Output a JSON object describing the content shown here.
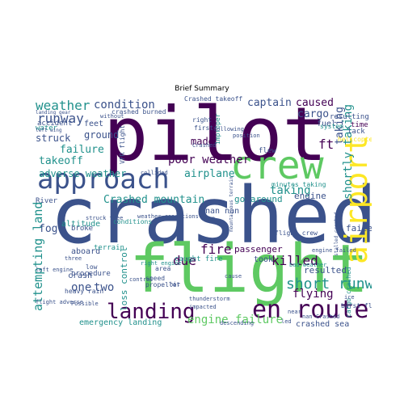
{
  "title": "Brief Summary",
  "palette": {
    "dark_purple": "#440154",
    "indigo": "#3b528b",
    "teal": "#21918c",
    "green": "#5ec962",
    "yellow": "#fde725"
  },
  "words": {
    "w01": "crashed",
    "w02": "pilot",
    "w03": "flight",
    "w04": "approach",
    "w05": "crew",
    "w06": "airport",
    "w07": "en route",
    "w08": "landing",
    "w09": "weather",
    "w10": "condition",
    "w11": "runway",
    "w12": "ground",
    "w13": "takeoff",
    "w14": "poor weather",
    "w15": "adverse weather",
    "w16": "attempting land",
    "w17": "Crashed mountain",
    "w18": "engine failure",
    "w19": "killed",
    "w20": "short runway",
    "w21": "captain",
    "w22": "cargo",
    "w23": "caused",
    "w24": "shortly taking",
    "w25": "taking",
    "w26": "failure",
    "w27": "fog",
    "w28": "struck",
    "w29": "fire",
    "w30": "due",
    "w31": "airplane",
    "w32": "two",
    "w33": "one",
    "w34": "emergency landing",
    "w35": "loss control",
    "w36": "engine",
    "w37": "go around",
    "w38": "passenger",
    "w39": "flying",
    "w40": "resulted",
    "w41": "crashed sea",
    "w42": "made",
    "w43": "nan nan",
    "w44": "taking",
    "w45": "failed",
    "w46": "minutes taking",
    "w47": "caught fire",
    "w48": "took",
    "w49": "crash",
    "w50": "aboard",
    "w51": "accident",
    "w52": "feet",
    "w53": "water",
    "w54": "altitude",
    "w55": "broke",
    "w56": "VFR flight",
    "w57": "terrain",
    "w58": "procedure",
    "w59": "heavy rain",
    "w60": "cargo crashed",
    "w61": "right engine",
    "w62": "crashed burned",
    "w63": "Crashed takeoff",
    "w64": "fuel",
    "w65": "resulting",
    "w66": "lack",
    "w67": "flew",
    "w68": "system",
    "w69": "time",
    "w70": "flight crew",
    "w71": "improper",
    "w72": "left engine",
    "w73": "speed",
    "w74": "propeller",
    "w75": "led",
    "w76": "near",
    "w77": "Crashed",
    "w78": "bad weather",
    "w79": "mountainous terrain",
    "w80": "River",
    "w81": "ft",
    "w82": "right",
    "w83": "first",
    "w84": "position",
    "w85": "descending",
    "w86": "weather conditions",
    "w87": "without",
    "w88": "collided",
    "w89": "hit",
    "w90": "cause",
    "w91": "nan",
    "w92": "Possible",
    "w93": "area",
    "w94": "engine failed",
    "w95": "impacted",
    "w96": "thunderstorm",
    "w97": "control",
    "w98": "nan Crashed",
    "w99": "stalled crashed",
    "w100": "burst flame",
    "w101": "conditions",
    "w102": "struck tree",
    "w103": "flight adverse",
    "w104": "left wing",
    "w105": "following",
    "w106": "helicopter",
    "w107": "ice",
    "w108": "low",
    "w109": "three",
    "w110": "landing gear"
  }
}
